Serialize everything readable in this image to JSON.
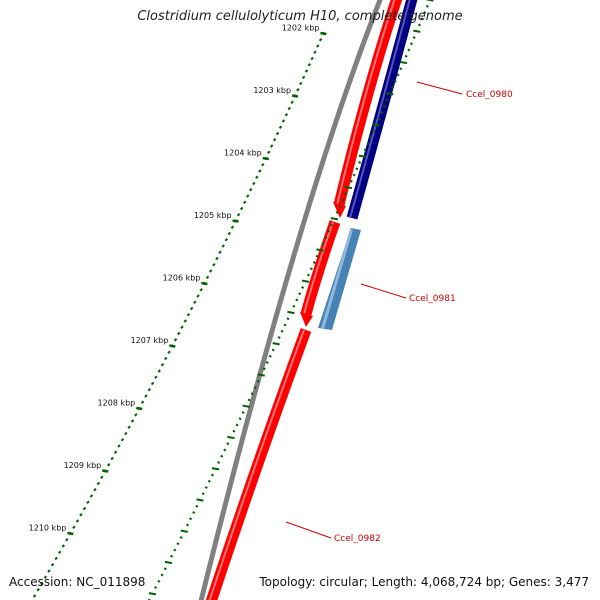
{
  "title": "Clostridium cellulolyticum H10, complete genome",
  "accession": "Accession: NC_011898",
  "summary": "Topology: circular; Length: 4,068,724 bp; Genes: 3,477",
  "colors": {
    "backbone": "#808080",
    "cds_forward": "#ff0000",
    "gene_reverse_dark": "#000080",
    "gene_reverse_light": "#4682b4",
    "ticks": "#006400",
    "label": "#cc0000"
  },
  "tick_labels": [
    {
      "label": "1202 kbp",
      "kbp": 1202
    },
    {
      "label": "1203 kbp",
      "kbp": 1203
    },
    {
      "label": "1204 kbp",
      "kbp": 1204
    },
    {
      "label": "1205 kbp",
      "kbp": 1205
    },
    {
      "label": "1206 kbp",
      "kbp": 1206
    },
    {
      "label": "1207 kbp",
      "kbp": 1207
    },
    {
      "label": "1208 kbp",
      "kbp": 1208
    },
    {
      "label": "1209 kbp",
      "kbp": 1209
    },
    {
      "label": "1210 kbp",
      "kbp": 1210
    }
  ],
  "gene_labels": [
    {
      "label": "Ccel_0980"
    },
    {
      "label": "Ccel_0981"
    },
    {
      "label": "Ccel_0982"
    }
  ]
}
